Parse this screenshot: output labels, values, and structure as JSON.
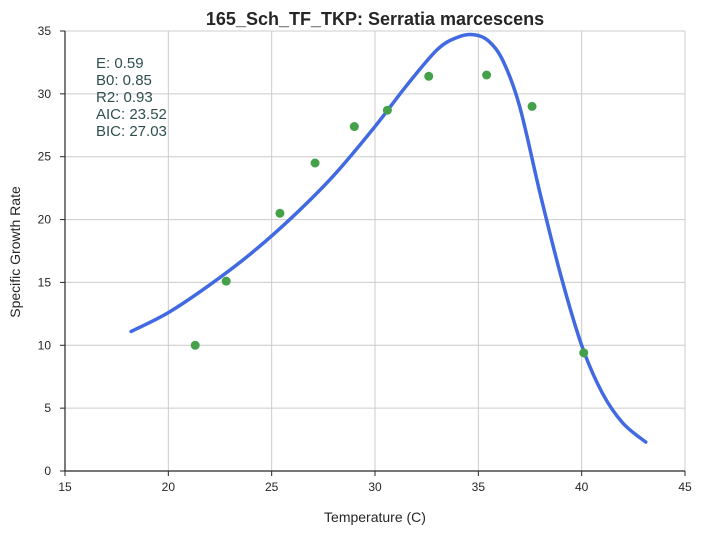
{
  "chart_data": {
    "type": "scatter",
    "title": "165_Sch_TF_TKP: Serratia marcescens",
    "xlabel": "Temperature (C)",
    "ylabel": "Specific Growth Rate",
    "xlim": [
      15,
      45
    ],
    "ylim": [
      0,
      35
    ],
    "xticks": [
      "15",
      "20",
      "25",
      "30",
      "35",
      "40",
      "45"
    ],
    "yticks": [
      "0",
      "5",
      "10",
      "15",
      "20",
      "25",
      "30",
      "35"
    ],
    "grid": true,
    "points": {
      "color": "#45a149",
      "x": [
        21.3,
        22.8,
        25.4,
        27.1,
        29.0,
        30.6,
        32.6,
        35.4,
        37.6,
        40.1
      ],
      "y": [
        10.0,
        15.1,
        20.5,
        24.5,
        27.4,
        28.7,
        31.4,
        31.5,
        29.0,
        9.4
      ]
    },
    "fit": {
      "color": "#4169e1",
      "x": [
        18.2,
        20.0,
        22.0,
        24.0,
        26.0,
        28.0,
        30.0,
        31.5,
        33.0,
        34.0,
        34.8,
        35.5,
        36.2,
        37.0,
        38.0,
        39.0,
        40.0,
        41.0,
        42.0,
        43.1
      ],
      "y": [
        11.1,
        12.6,
        14.8,
        17.3,
        20.2,
        23.5,
        27.4,
        30.6,
        33.5,
        34.5,
        34.7,
        34.2,
        32.6,
        29.0,
        22.0,
        15.5,
        10.0,
        6.2,
        3.8,
        2.3
      ]
    },
    "stats": [
      "E:  0.59",
      "B0:  0.85",
      "R2:  0.93",
      "AIC: 23.52",
      "BIC: 27.03"
    ]
  }
}
